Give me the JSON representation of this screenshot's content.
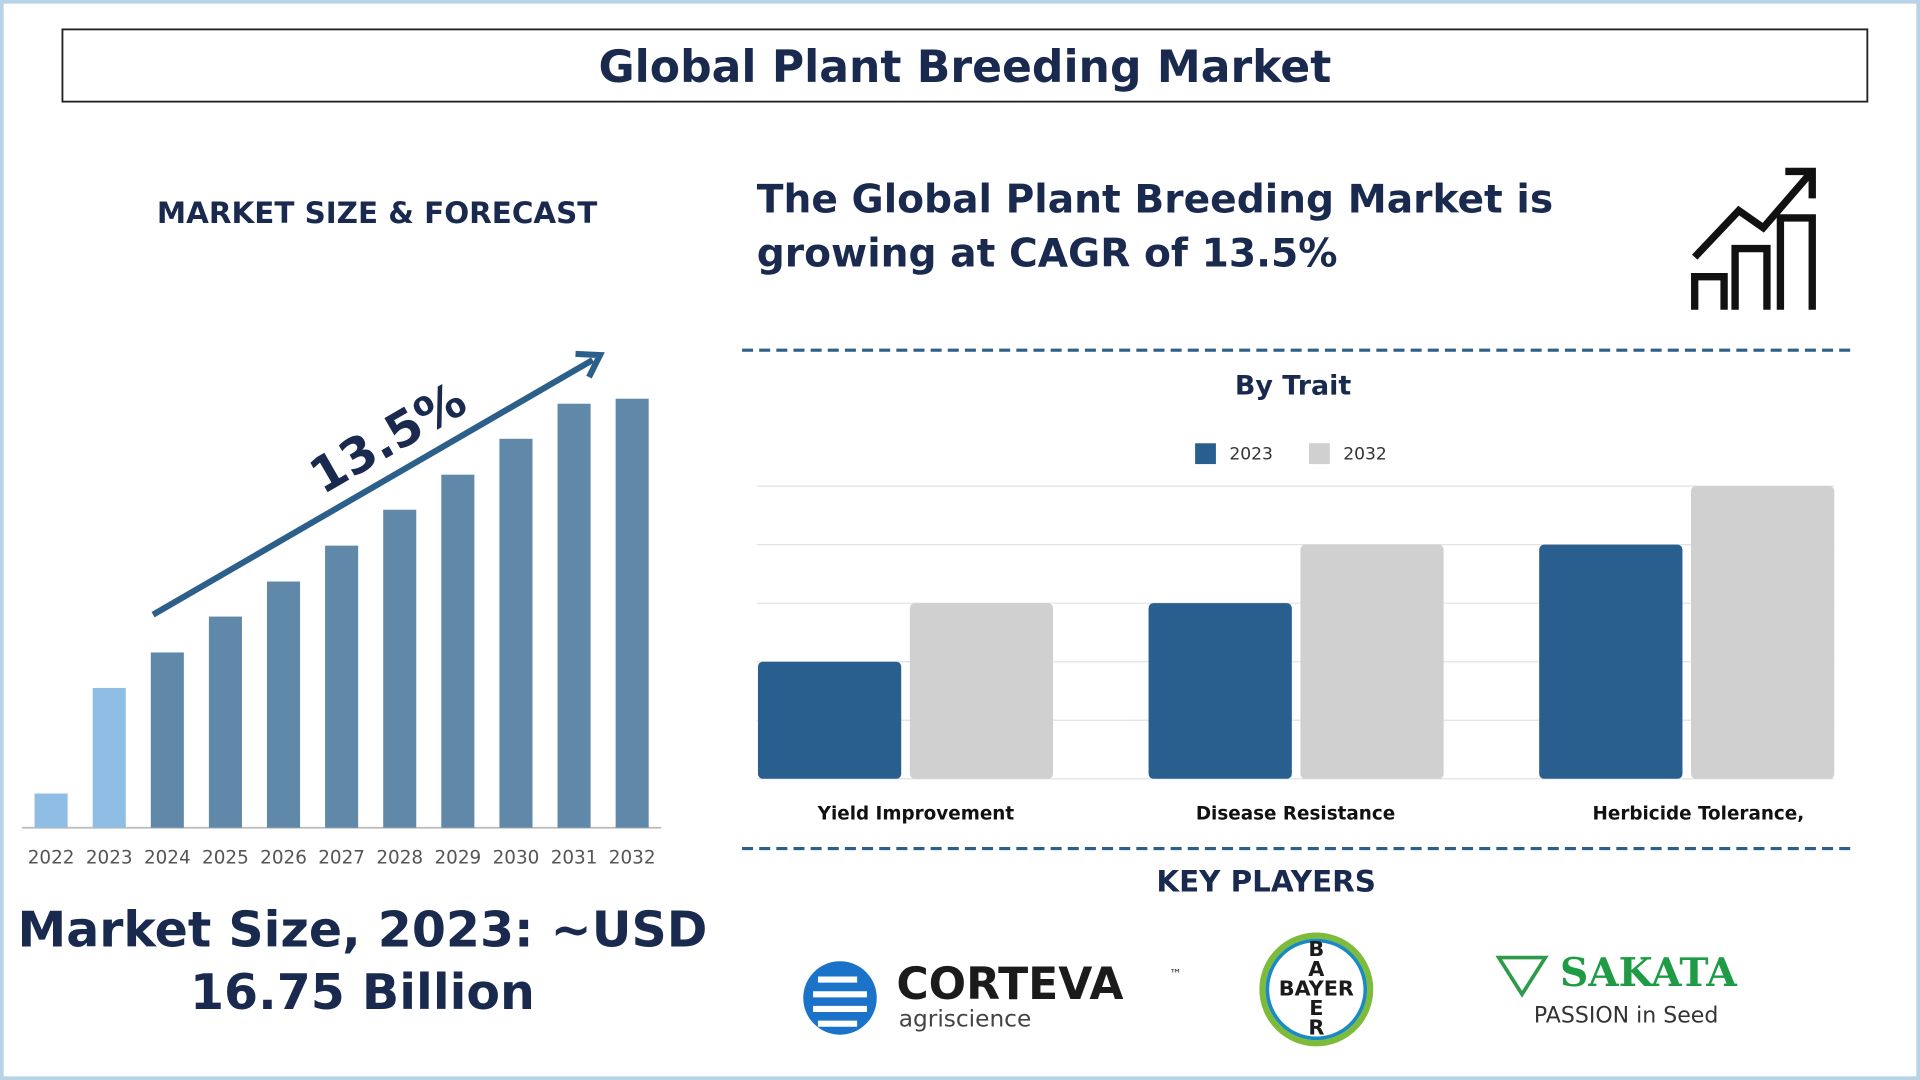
{
  "title": "Global Plant Breeding Market",
  "left_panel": {
    "heading": "MARKET SIZE & FORECAST",
    "market_size_lines": [
      "Market Size, 2023: ~USD",
      "16.75 Billion"
    ]
  },
  "headline_lines": [
    "The Global Plant Breeding Market is",
    "growing at CAGR of 13.5%"
  ],
  "chart_data": [
    {
      "type": "bar",
      "categories": [
        "2022",
        "2023",
        "2024",
        "2025",
        "2026",
        "2027",
        "2028",
        "2029",
        "2030",
        "2031",
        "2032"
      ],
      "values": [
        4.1,
        16.75,
        21.0,
        25.3,
        29.5,
        33.8,
        38.1,
        42.3,
        46.6,
        50.8,
        51.4
      ],
      "colors": [
        "#8fbde3",
        "#8fbde3",
        "#6088a8",
        "#6088a8",
        "#6088a8",
        "#6088a8",
        "#6088a8",
        "#6088a8",
        "#6088a8",
        "#6088a8",
        "#6088a8"
      ],
      "ylim": [
        0,
        60
      ],
      "annotation": "13.5%"
    },
    {
      "type": "grouped-bar",
      "title": "By Trait",
      "categories": [
        "Yield Improvement",
        "Disease Resistance",
        "Herbicide Tolerance,"
      ],
      "series": [
        {
          "name": "2023",
          "color": "#285f8f",
          "values": [
            2,
            3,
            4
          ]
        },
        {
          "name": "2032",
          "color": "#d0d0d0",
          "values": [
            3,
            4,
            5
          ]
        }
      ],
      "ylim": [
        0,
        5
      ],
      "yticks": [
        0,
        1,
        2,
        3,
        4,
        5
      ],
      "grid": true
    }
  ],
  "key_players": {
    "heading": "KEY PLAYERS",
    "corteva": {
      "name": "CORTEVA",
      "tm": "™",
      "sub": "agriscience"
    },
    "bayer": {
      "name": "BAYER",
      "vertical": "BAYER"
    },
    "sakata": {
      "name": "SAKATA",
      "tagline": "PASSION in Seed"
    }
  }
}
